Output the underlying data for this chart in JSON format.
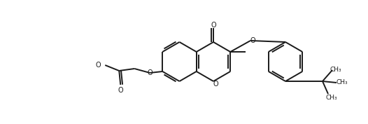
{
  "bg_color": "#ffffff",
  "line_color": "#1a1a1a",
  "line_width": 1.4,
  "figsize": [
    5.26,
    1.77
  ],
  "dpi": 100,
  "xlim": [
    0,
    526
  ],
  "ylim": [
    0,
    177
  ]
}
